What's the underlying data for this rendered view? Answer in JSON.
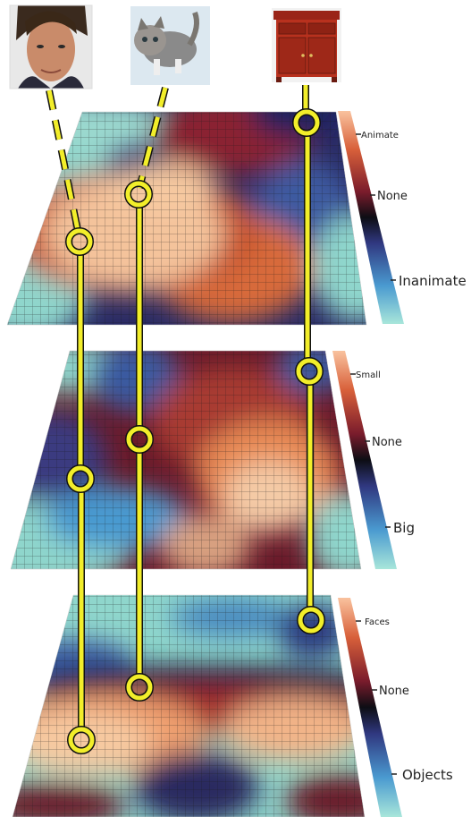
{
  "stimuli": [
    {
      "kind": "face",
      "name": "face-photo"
    },
    {
      "kind": "cat",
      "name": "cat-photo"
    },
    {
      "kind": "cabinet",
      "name": "cabinet-photo"
    }
  ],
  "maps": [
    {
      "name": "animacy-map",
      "scale": {
        "top": "Animate",
        "middle": "None",
        "bottom": "Inanimate"
      }
    },
    {
      "name": "size-map",
      "scale": {
        "top": "Small",
        "middle": "None",
        "bottom": "Big"
      }
    },
    {
      "name": "category-map",
      "scale": {
        "top": "Faces",
        "middle": "None",
        "bottom": "Objects"
      }
    }
  ],
  "colors": {
    "marker": "#f2ee2a",
    "marker_outline": "#111111",
    "colormap": [
      "#8fd6cc",
      "#4a8fc4",
      "#2a2a6a",
      "#111111",
      "#8b1e2a",
      "#d86a3a",
      "#f6c9a0"
    ]
  }
}
